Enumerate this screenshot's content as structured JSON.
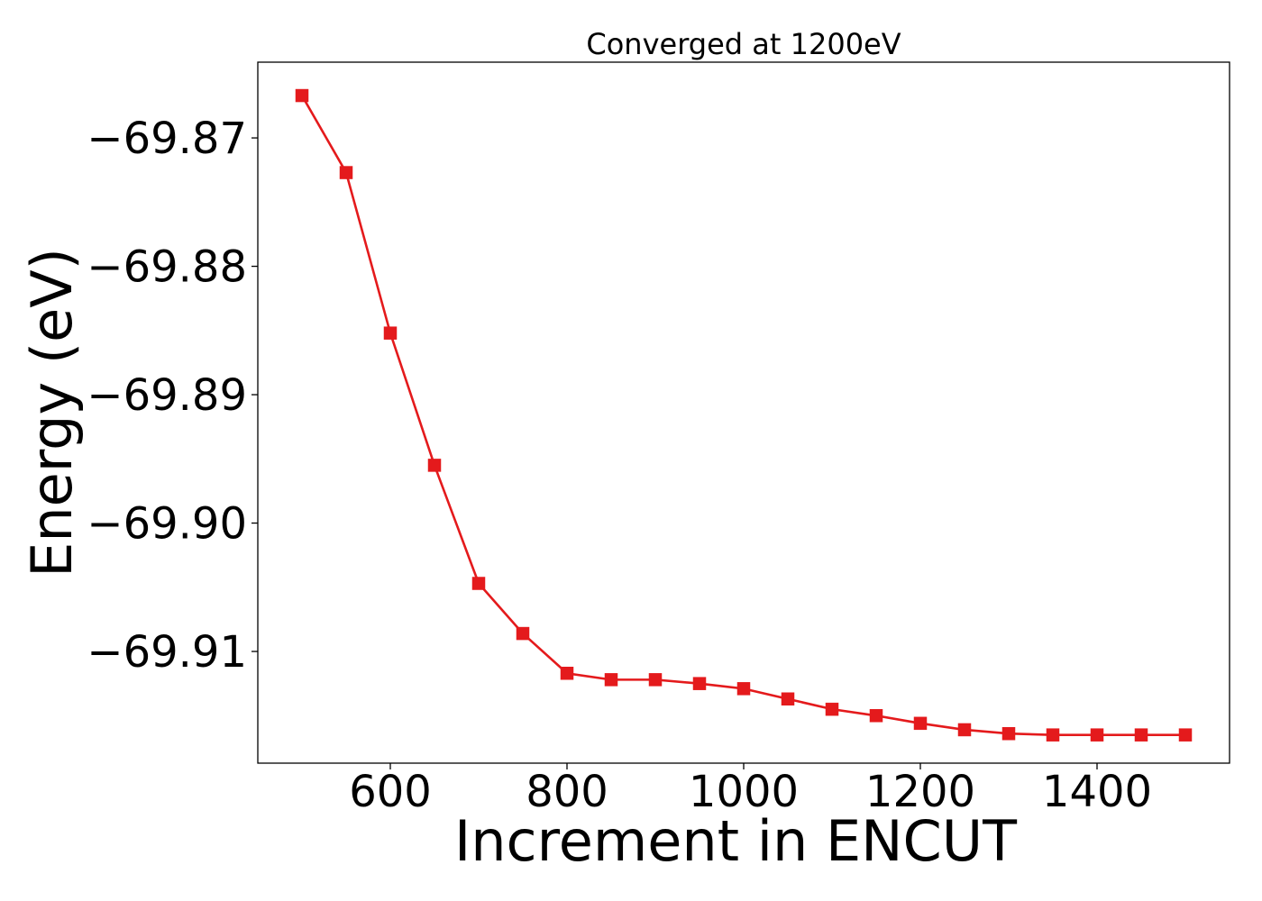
{
  "chart_data": {
    "type": "line",
    "title": "Converged at 1200eV",
    "xlabel": "Increment in ENCUT",
    "ylabel": "Energy (eV)",
    "xlim": [
      450,
      1550
    ],
    "ylim": [
      -69.9187,
      -69.8641
    ],
    "xticks": [
      600,
      800,
      1000,
      1200,
      1400
    ],
    "xtick_labels": [
      "600",
      "800",
      "1000",
      "1200",
      "1400"
    ],
    "yticks": [
      -69.87,
      -69.88,
      -69.89,
      -69.9,
      -69.91
    ],
    "ytick_labels": [
      "−69.87",
      "−69.88",
      "−69.89",
      "−69.90",
      "−69.91"
    ],
    "grid": false,
    "series": [
      {
        "color": "#e41a1c",
        "marker": "square",
        "x": [
          500,
          550,
          600,
          650,
          700,
          750,
          800,
          850,
          900,
          950,
          1000,
          1050,
          1100,
          1150,
          1200,
          1250,
          1300,
          1350,
          1400,
          1450,
          1500
        ],
        "y": [
          -69.8667,
          -69.8727,
          -69.8852,
          -69.8955,
          -69.9047,
          -69.9086,
          -69.9117,
          -69.9122,
          -69.9122,
          -69.9125,
          -69.9129,
          -69.9137,
          -69.9145,
          -69.915,
          -69.9156,
          -69.9161,
          -69.9164,
          -69.9165,
          -69.9165,
          -69.9165,
          -69.9165
        ]
      }
    ]
  }
}
